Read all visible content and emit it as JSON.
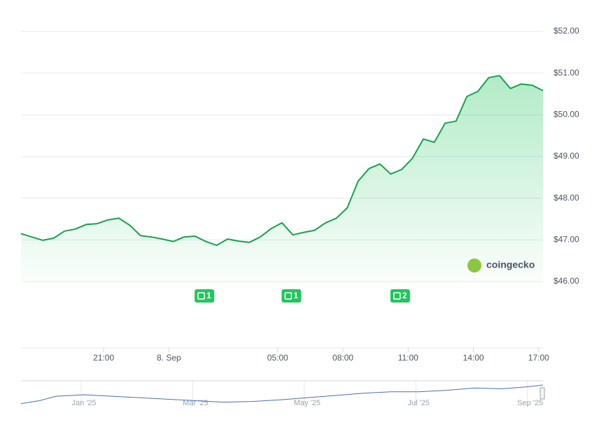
{
  "chart_data": [
    {
      "type": "line",
      "x": [
        17.2,
        17.7,
        18.2,
        18.7,
        19.2,
        19.7,
        20.2,
        20.7,
        21.2,
        21.7,
        22.2,
        22.7,
        23.2,
        23.7,
        24.2,
        24.7,
        25.2,
        25.7,
        26.2,
        26.7,
        27.2,
        27.7,
        28.2,
        28.7,
        29.2,
        29.7,
        30.2,
        30.7,
        31.2,
        31.7,
        32.2,
        32.7,
        33.2,
        33.7,
        34.2,
        34.7,
        35.2,
        35.7,
        36.2,
        36.7,
        37.2,
        37.7,
        38.2,
        38.7,
        39.2,
        39.7,
        40.2,
        40.7,
        41.2
      ],
      "series": [
        {
          "color": "#16a34a",
          "values": [
            47.15,
            47.07,
            46.99,
            47.04,
            47.21,
            47.26,
            47.37,
            47.39,
            47.48,
            47.52,
            47.35,
            47.1,
            47.07,
            47.02,
            46.96,
            47.07,
            47.09,
            46.96,
            46.87,
            47.02,
            46.97,
            46.94,
            47.07,
            47.27,
            47.41,
            47.12,
            47.18,
            47.23,
            47.41,
            47.52,
            47.77,
            48.41,
            48.71,
            48.82,
            48.58,
            48.69,
            48.96,
            49.42,
            49.34,
            49.8,
            49.85,
            50.44,
            50.56,
            50.89,
            50.94,
            50.63,
            50.74,
            50.71,
            50.58
          ]
        }
      ],
      "xlim": [
        17.2,
        41.2
      ],
      "xticks": [
        {
          "value": 21,
          "label": "21:00"
        },
        {
          "value": 24,
          "label": "8. Sep"
        },
        {
          "value": 29,
          "label": "05:00"
        },
        {
          "value": 32,
          "label": "08:00"
        },
        {
          "value": 35,
          "label": "11:00"
        },
        {
          "value": 38,
          "label": "14:00"
        },
        {
          "value": 41,
          "label": "17:00"
        }
      ],
      "ylim": [
        46,
        52
      ],
      "yticks": [
        {
          "value": 46,
          "label": "$46.00"
        },
        {
          "value": 47,
          "label": "$47.00"
        },
        {
          "value": 48,
          "label": "$48.00"
        },
        {
          "value": 49,
          "label": "$49.00"
        },
        {
          "value": 50,
          "label": "$50.00"
        },
        {
          "value": 51,
          "label": "$51.00"
        },
        {
          "value": 52,
          "label": "$52.00"
        }
      ],
      "grid": true,
      "annotations": [
        {
          "x": 25.6,
          "label": "1"
        },
        {
          "x": 29.6,
          "label": "1"
        },
        {
          "x": 34.6,
          "label": "2"
        }
      ],
      "watermark": "coingecko"
    },
    {
      "type": "line",
      "x": [
        -1.13,
        -0.8,
        -0.5,
        0,
        0.5,
        1,
        1.5,
        2,
        2.5,
        3,
        3.5,
        4,
        4.5,
        5,
        5.5,
        6,
        6.5,
        7,
        7.5,
        8,
        8.23
      ],
      "series": [
        {
          "color": "#4a6fb5",
          "values": [
            38,
            40,
            43,
            44,
            43,
            42,
            41,
            40,
            39,
            39.5,
            40.5,
            42,
            43.5,
            45,
            46,
            46,
            47,
            48.5,
            48,
            49.5,
            50.6
          ]
        }
      ],
      "xlim": [
        -1.13,
        8.23
      ],
      "xticks": [
        {
          "value": 0,
          "label": "Jan '25"
        },
        {
          "value": 2,
          "label": "Mar '25"
        },
        {
          "value": 4,
          "label": "May '25"
        },
        {
          "value": 6,
          "label": "Jul '25"
        },
        {
          "value": 8,
          "label": "Sep '25"
        }
      ],
      "ylim": [
        36,
        52
      ]
    }
  ]
}
